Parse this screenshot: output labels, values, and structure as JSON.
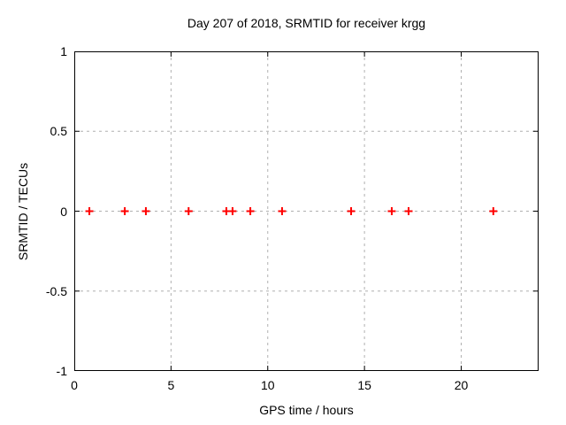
{
  "figure": {
    "background": "#ffffff",
    "border_color": "#000000",
    "grid_color": "#b0b0b0",
    "text_color": "#000000"
  },
  "chart_data": {
    "type": "scatter",
    "title": "Day 207 of 2018, SRMTID for receiver krgg",
    "xlabel": "GPS time / hours",
    "ylabel": "SRMTID / TECUs",
    "xlim": [
      0,
      24
    ],
    "ylim": [
      -1,
      1
    ],
    "xticks": [
      0,
      5,
      10,
      15,
      20
    ],
    "yticks": [
      -1,
      -0.5,
      0,
      0.5,
      1
    ],
    "grid": true,
    "legend": "none",
    "series": [
      {
        "name": "SRMTID",
        "marker": "plus",
        "color": "#ff0000",
        "x": [
          0.78,
          2.61,
          3.7,
          5.91,
          7.86,
          8.18,
          9.1,
          10.74,
          14.31,
          16.41,
          17.28,
          21.66
        ],
        "y": [
          0,
          0,
          0,
          0,
          0,
          0,
          0,
          0,
          0,
          0,
          0,
          0
        ]
      }
    ]
  }
}
